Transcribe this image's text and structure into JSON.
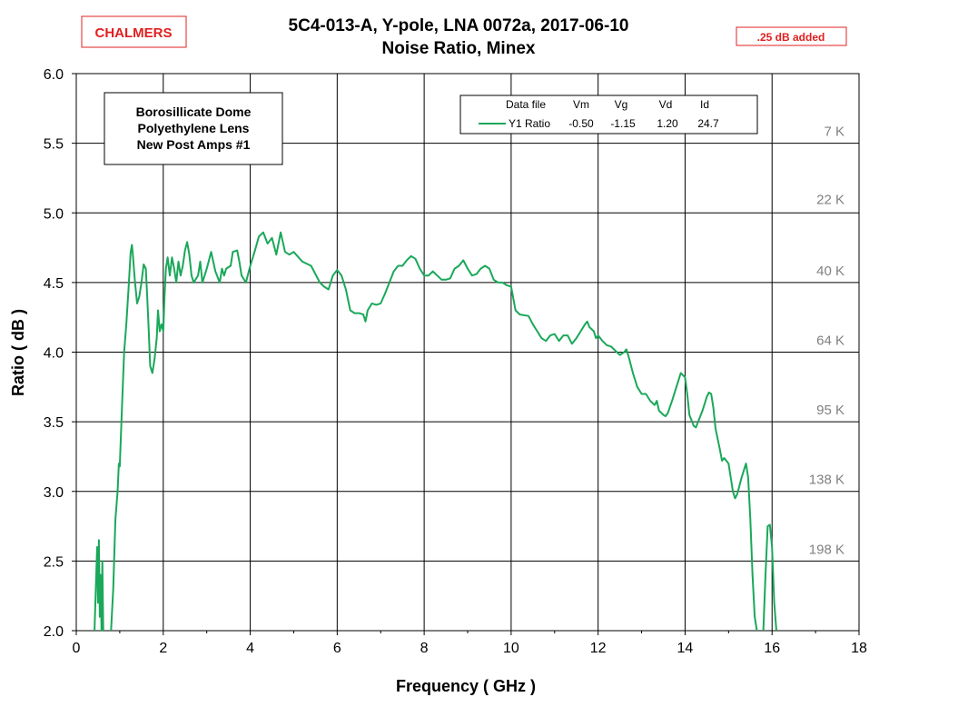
{
  "brand": "CHALMERS",
  "note": ".25 dB added",
  "chart_data": {
    "type": "line",
    "title": "5C4-013-A,  Y-pole,  LNA 0072a,  2017-06-10",
    "subtitle": "Noise Ratio,  Minex",
    "xlabel": "Frequency  ( GHz )",
    "ylabel": "Ratio  ( dB )",
    "xlim": [
      0,
      18
    ],
    "ylim": [
      2.0,
      6.0
    ],
    "x_ticks": [
      "0",
      "2",
      "4",
      "6",
      "8",
      "10",
      "12",
      "14",
      "16",
      "18"
    ],
    "y_ticks": [
      "2.0",
      "2.5",
      "3.0",
      "3.5",
      "4.0",
      "4.5",
      "5.0",
      "5.5",
      "6.0"
    ],
    "grid": true,
    "line_color": "#1aa85a",
    "annotation_box": [
      "Borosillicate Dome",
      "Polyethylene Lens",
      "New Post Amps #1"
    ],
    "temperature_labels": [
      {
        "y": 5.52,
        "text": "7 K"
      },
      {
        "y": 5.03,
        "text": "22 K"
      },
      {
        "y": 4.52,
        "text": "40 K"
      },
      {
        "y": 4.02,
        "text": "64 K"
      },
      {
        "y": 3.52,
        "text": "95 K"
      },
      {
        "y": 3.02,
        "text": "138 K"
      },
      {
        "y": 2.52,
        "text": "198 K"
      }
    ],
    "legend": {
      "placement": "top-right",
      "headers": [
        "Data file",
        "Vm",
        "Vg",
        "Vd",
        "Id"
      ],
      "row": [
        "Y1 Ratio",
        "-0.50",
        "-1.15",
        "1.20",
        "24.7"
      ]
    },
    "series": [
      {
        "name": "Y1 Ratio",
        "segments": [
          [
            [
              0.42,
              2.0
            ],
            [
              0.45,
              2.3
            ],
            [
              0.48,
              2.6
            ],
            [
              0.5,
              2.2
            ],
            [
              0.52,
              2.65
            ],
            [
              0.54,
              2.1
            ],
            [
              0.56,
              2.4
            ],
            [
              0.58,
              2.0
            ],
            [
              0.6,
              2.5
            ],
            [
              0.62,
              2.0
            ]
          ],
          [
            [
              0.8,
              2.0
            ],
            [
              0.85,
              2.3
            ],
            [
              0.9,
              2.8
            ],
            [
              0.95,
              3.0
            ],
            [
              0.98,
              3.2
            ],
            [
              1.0,
              3.18
            ],
            [
              1.05,
              3.6
            ],
            [
              1.1,
              4.0
            ],
            [
              1.15,
              4.2
            ],
            [
              1.2,
              4.45
            ],
            [
              1.25,
              4.72
            ],
            [
              1.28,
              4.77
            ],
            [
              1.3,
              4.7
            ],
            [
              1.35,
              4.5
            ],
            [
              1.4,
              4.35
            ],
            [
              1.45,
              4.4
            ],
            [
              1.5,
              4.5
            ],
            [
              1.55,
              4.63
            ],
            [
              1.6,
              4.6
            ],
            [
              1.63,
              4.4
            ],
            [
              1.66,
              4.2
            ],
            [
              1.7,
              3.9
            ],
            [
              1.75,
              3.85
            ],
            [
              1.8,
              3.95
            ],
            [
              1.85,
              4.1
            ],
            [
              1.88,
              4.3
            ],
            [
              1.92,
              4.15
            ],
            [
              1.96,
              4.2
            ],
            [
              2.0,
              4.15
            ],
            [
              2.03,
              4.4
            ],
            [
              2.06,
              4.6
            ],
            [
              2.1,
              4.68
            ],
            [
              2.15,
              4.55
            ],
            [
              2.2,
              4.68
            ],
            [
              2.25,
              4.6
            ],
            [
              2.3,
              4.5
            ],
            [
              2.35,
              4.65
            ],
            [
              2.4,
              4.55
            ],
            [
              2.45,
              4.62
            ],
            [
              2.5,
              4.73
            ],
            [
              2.55,
              4.79
            ],
            [
              2.6,
              4.7
            ],
            [
              2.65,
              4.55
            ],
            [
              2.7,
              4.5
            ],
            [
              2.8,
              4.55
            ],
            [
              2.85,
              4.65
            ],
            [
              2.9,
              4.5
            ],
            [
              3.0,
              4.6
            ],
            [
              3.1,
              4.72
            ],
            [
              3.2,
              4.58
            ],
            [
              3.3,
              4.5
            ],
            [
              3.35,
              4.6
            ],
            [
              3.4,
              4.55
            ],
            [
              3.45,
              4.6
            ],
            [
              3.55,
              4.62
            ],
            [
              3.6,
              4.72
            ],
            [
              3.7,
              4.73
            ],
            [
              3.75,
              4.65
            ],
            [
              3.8,
              4.55
            ],
            [
              3.9,
              4.5
            ],
            [
              4.0,
              4.62
            ],
            [
              4.1,
              4.72
            ],
            [
              4.2,
              4.83
            ],
            [
              4.3,
              4.86
            ],
            [
              4.4,
              4.78
            ],
            [
              4.5,
              4.82
            ],
            [
              4.6,
              4.7
            ],
            [
              4.7,
              4.86
            ],
            [
              4.8,
              4.72
            ],
            [
              4.9,
              4.7
            ],
            [
              5.0,
              4.72
            ],
            [
              5.2,
              4.65
            ],
            [
              5.4,
              4.62
            ],
            [
              5.6,
              4.5
            ],
            [
              5.7,
              4.47
            ],
            [
              5.8,
              4.45
            ],
            [
              5.9,
              4.55
            ],
            [
              6.0,
              4.59
            ],
            [
              6.1,
              4.55
            ],
            [
              6.2,
              4.45
            ],
            [
              6.3,
              4.3
            ],
            [
              6.4,
              4.28
            ],
            [
              6.5,
              4.28
            ],
            [
              6.6,
              4.27
            ],
            [
              6.65,
              4.22
            ],
            [
              6.7,
              4.3
            ],
            [
              6.8,
              4.35
            ],
            [
              6.9,
              4.34
            ],
            [
              7.0,
              4.35
            ],
            [
              7.1,
              4.42
            ],
            [
              7.2,
              4.5
            ],
            [
              7.3,
              4.58
            ],
            [
              7.4,
              4.62
            ],
            [
              7.5,
              4.62
            ],
            [
              7.6,
              4.66
            ],
            [
              7.7,
              4.69
            ],
            [
              7.8,
              4.67
            ],
            [
              7.9,
              4.6
            ],
            [
              8.0,
              4.55
            ],
            [
              8.1,
              4.55
            ],
            [
              8.2,
              4.58
            ],
            [
              8.3,
              4.55
            ],
            [
              8.4,
              4.52
            ],
            [
              8.5,
              4.52
            ],
            [
              8.6,
              4.53
            ],
            [
              8.7,
              4.6
            ],
            [
              8.8,
              4.62
            ],
            [
              8.9,
              4.66
            ],
            [
              9.0,
              4.6
            ],
            [
              9.1,
              4.55
            ],
            [
              9.2,
              4.56
            ],
            [
              9.3,
              4.6
            ],
            [
              9.4,
              4.62
            ],
            [
              9.5,
              4.6
            ],
            [
              9.6,
              4.52
            ],
            [
              9.7,
              4.5
            ],
            [
              9.8,
              4.5
            ],
            [
              9.9,
              4.48
            ],
            [
              10.0,
              4.47
            ],
            [
              10.1,
              4.3
            ],
            [
              10.2,
              4.27
            ],
            [
              10.4,
              4.26
            ],
            [
              10.5,
              4.2
            ],
            [
              10.6,
              4.15
            ],
            [
              10.7,
              4.1
            ],
            [
              10.8,
              4.08
            ],
            [
              10.9,
              4.12
            ],
            [
              11.0,
              4.13
            ],
            [
              11.1,
              4.08
            ],
            [
              11.2,
              4.12
            ],
            [
              11.3,
              4.12
            ],
            [
              11.4,
              4.06
            ],
            [
              11.5,
              4.1
            ],
            [
              11.6,
              4.15
            ],
            [
              11.7,
              4.2
            ],
            [
              11.75,
              4.22
            ],
            [
              11.8,
              4.18
            ],
            [
              11.9,
              4.15
            ],
            [
              11.95,
              4.1
            ],
            [
              12.0,
              4.12
            ],
            [
              12.1,
              4.08
            ],
            [
              12.2,
              4.05
            ],
            [
              12.3,
              4.04
            ],
            [
              12.4,
              4.01
            ],
            [
              12.5,
              3.98
            ],
            [
              12.6,
              4.0
            ],
            [
              12.65,
              4.02
            ],
            [
              12.7,
              3.97
            ],
            [
              12.8,
              3.85
            ],
            [
              12.9,
              3.75
            ],
            [
              13.0,
              3.7
            ],
            [
              13.1,
              3.7
            ],
            [
              13.2,
              3.65
            ],
            [
              13.3,
              3.62
            ],
            [
              13.35,
              3.65
            ],
            [
              13.4,
              3.58
            ],
            [
              13.5,
              3.55
            ],
            [
              13.55,
              3.54
            ],
            [
              13.6,
              3.56
            ],
            [
              13.7,
              3.65
            ],
            [
              13.8,
              3.75
            ],
            [
              13.9,
              3.85
            ],
            [
              14.0,
              3.82
            ],
            [
              14.05,
              3.7
            ],
            [
              14.1,
              3.55
            ],
            [
              14.2,
              3.47
            ],
            [
              14.25,
              3.46
            ],
            [
              14.3,
              3.5
            ],
            [
              14.4,
              3.58
            ],
            [
              14.5,
              3.68
            ],
            [
              14.55,
              3.71
            ],
            [
              14.6,
              3.7
            ],
            [
              14.65,
              3.6
            ],
            [
              14.7,
              3.45
            ],
            [
              14.8,
              3.3
            ],
            [
              14.85,
              3.22
            ],
            [
              14.9,
              3.24
            ],
            [
              15.0,
              3.2
            ],
            [
              15.05,
              3.1
            ],
            [
              15.1,
              3.0
            ],
            [
              15.15,
              2.95
            ],
            [
              15.2,
              2.98
            ],
            [
              15.3,
              3.1
            ],
            [
              15.35,
              3.15
            ],
            [
              15.4,
              3.2
            ],
            [
              15.45,
              3.1
            ],
            [
              15.5,
              2.8
            ],
            [
              15.55,
              2.4
            ],
            [
              15.6,
              2.1
            ],
            [
              15.65,
              2.0
            ]
          ],
          [
            [
              15.8,
              2.0
            ],
            [
              15.85,
              2.4
            ],
            [
              15.9,
              2.75
            ],
            [
              15.95,
              2.76
            ],
            [
              16.0,
              2.6
            ],
            [
              16.05,
              2.2
            ],
            [
              16.1,
              2.0
            ]
          ]
        ]
      }
    ]
  }
}
